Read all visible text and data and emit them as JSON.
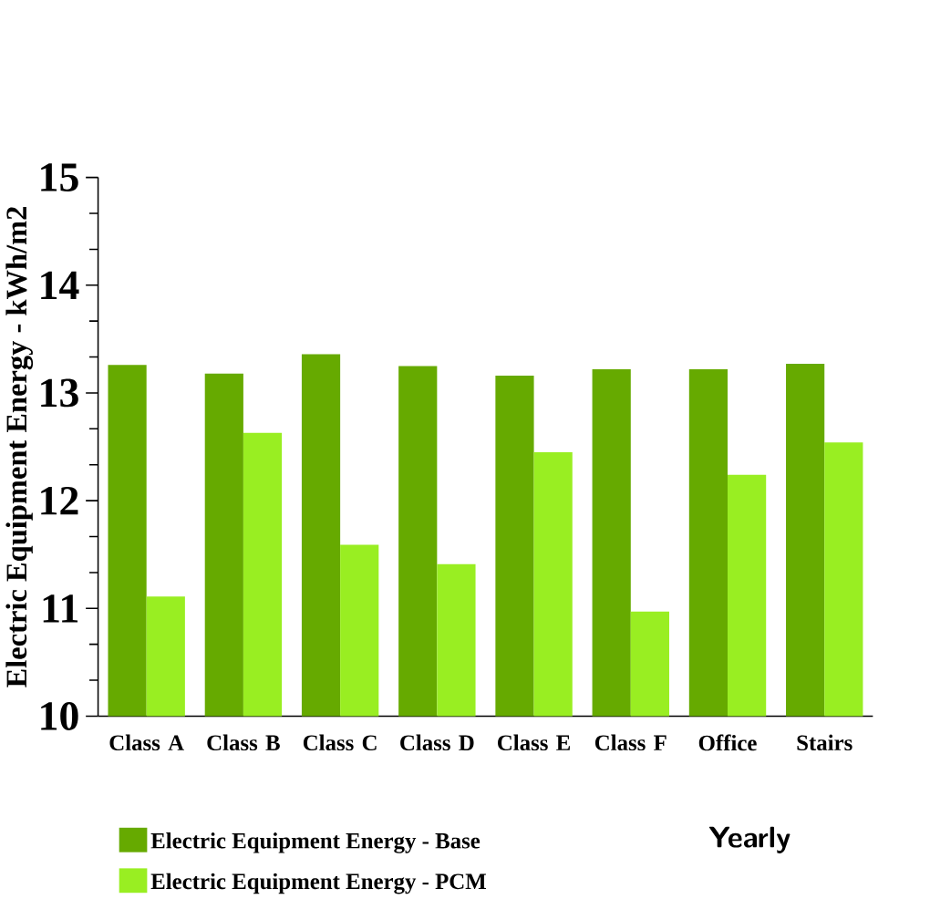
{
  "chart_data": {
    "type": "bar",
    "ylabel": "Electric Equipment Energy - kWh/m2",
    "categories": [
      "Class A",
      "Class B",
      "Class C",
      "Class D",
      "Class E",
      "Class F",
      "Office",
      "Stairs"
    ],
    "series": [
      {
        "name": "Electric Equipment Energy - Base",
        "color": "#66aa00",
        "values": [
          13.26,
          13.18,
          13.36,
          13.25,
          13.16,
          13.22,
          13.22,
          13.27
        ]
      },
      {
        "name": "Electric Equipment Energy - PCM",
        "color": "#99ee22",
        "values": [
          11.11,
          12.63,
          11.59,
          11.41,
          12.45,
          10.97,
          12.24,
          12.54
        ]
      }
    ],
    "ylim": [
      10,
      15
    ],
    "yticks": [
      10,
      {
        "value": 10.333,
        "label": null
      },
      {
        "value": 10.667,
        "label": null
      },
      11,
      {
        "value": 11.333,
        "label": null
      },
      {
        "value": 11.667,
        "label": null
      },
      12,
      {
        "value": 12.333,
        "label": null
      },
      {
        "value": 12.667,
        "label": null
      },
      13,
      {
        "value": 13.333,
        "label": null
      },
      {
        "value": 13.667,
        "label": null
      },
      14,
      {
        "value": 14.333,
        "label": null
      },
      {
        "value": 14.667,
        "label": null
      },
      15
    ],
    "legend": "bottom",
    "annotations": [
      "Yearly"
    ]
  }
}
